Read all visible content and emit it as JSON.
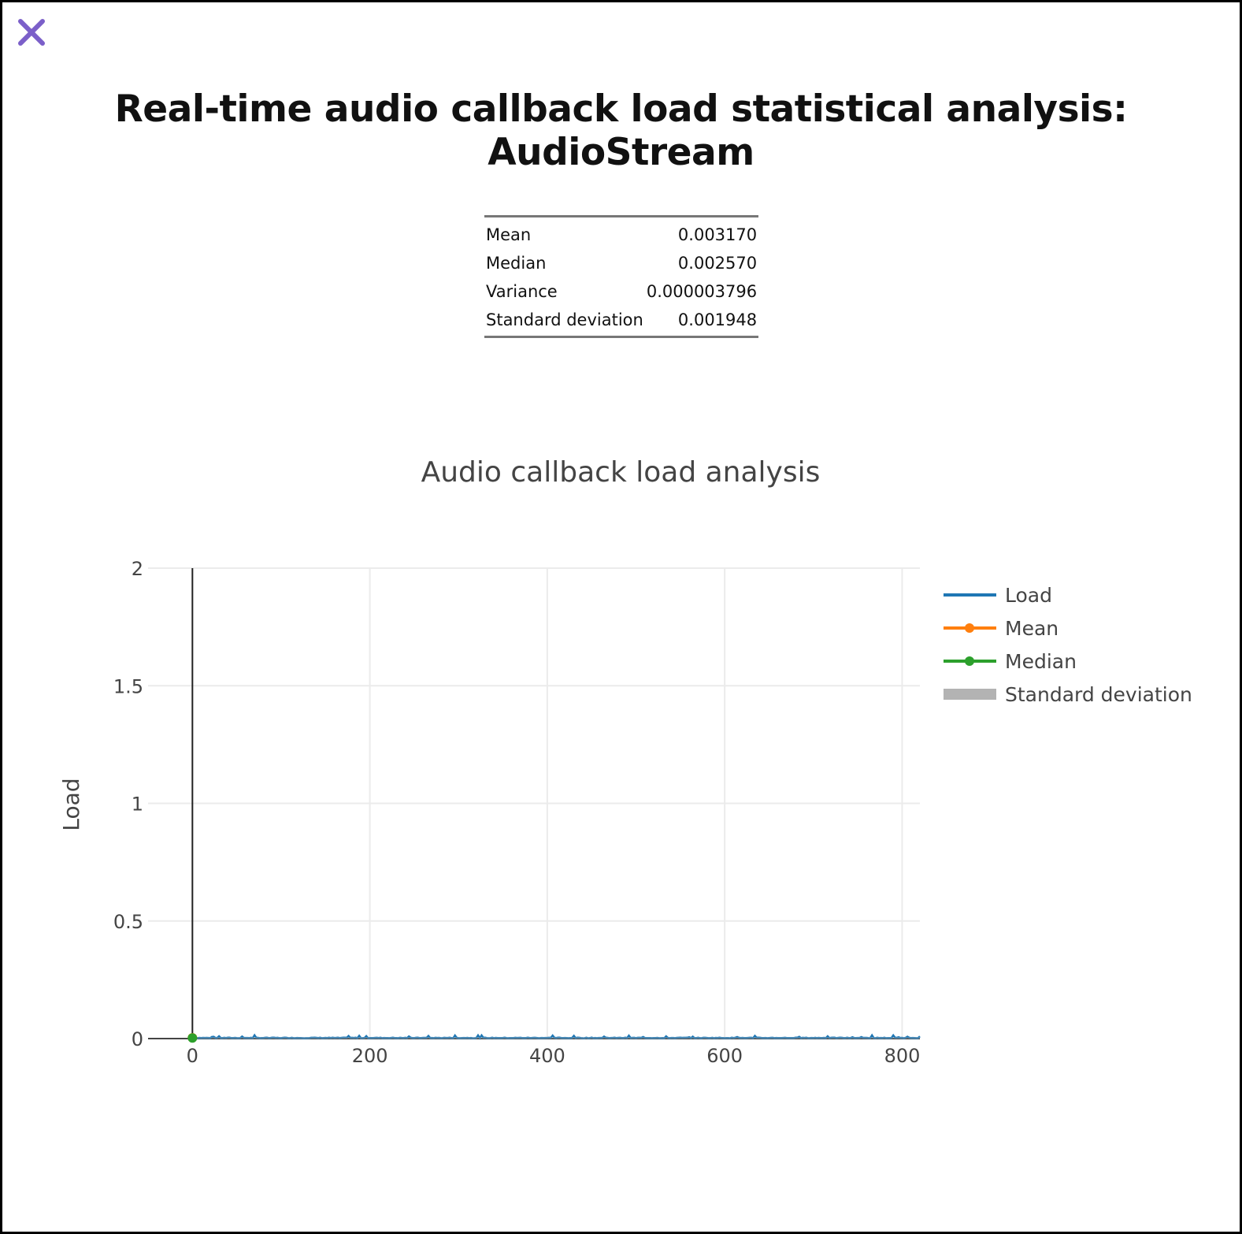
{
  "header": {
    "title": "Real-time audio callback load statistical analysis: AudioStream",
    "close_icon": "close-icon",
    "close_color": "#7b5fc9"
  },
  "stats_table": {
    "rows": [
      {
        "label": "Mean",
        "value": "0.003170"
      },
      {
        "label": "Median",
        "value": "0.002570"
      },
      {
        "label": "Variance",
        "value": "0.000003796"
      },
      {
        "label": "Standard deviation",
        "value": "0.001948"
      }
    ]
  },
  "chart_data": {
    "type": "line",
    "title": "Audio callback load analysis",
    "xlabel": "",
    "ylabel": "Load",
    "xlim": [
      -50,
      820
    ],
    "ylim": [
      0,
      2
    ],
    "x_ticks": [
      0,
      200,
      400,
      600,
      800
    ],
    "y_ticks": [
      0,
      0.5,
      1,
      1.5,
      2
    ],
    "grid": true,
    "legend_position": "right",
    "series": [
      {
        "name": "Load",
        "color": "#1f77b4",
        "style": "line",
        "x_range": [
          0,
          820
        ],
        "typical_value": 0.003,
        "peak_value": 0.015
      },
      {
        "name": "Mean",
        "color": "#ff7f0e",
        "style": "line-marker",
        "value": 0.00317
      },
      {
        "name": "Median",
        "color": "#2ca02c",
        "style": "line-marker",
        "value": 0.00257
      },
      {
        "name": "Standard deviation",
        "color": "#b3b3b3",
        "style": "band",
        "value": 0.001948
      }
    ],
    "vertical_marker_x": 0
  }
}
